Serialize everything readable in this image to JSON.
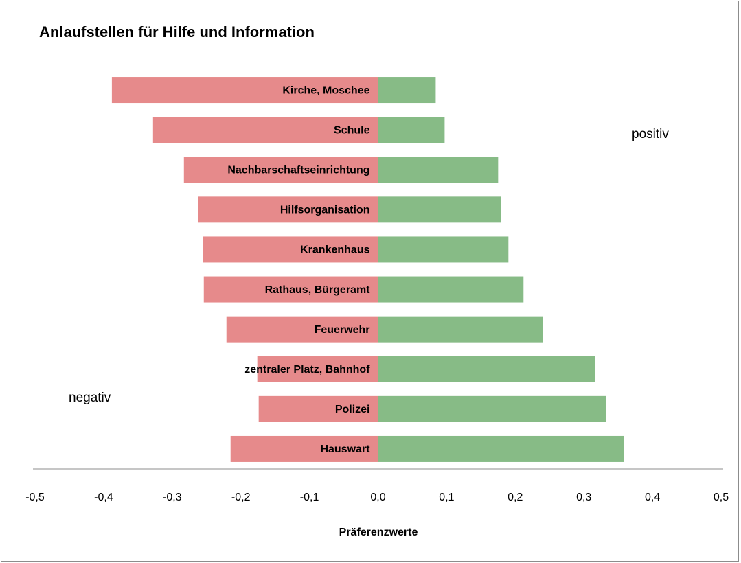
{
  "chart_data": {
    "type": "diverging-bar",
    "title": "Anlaufstellen für Hilfe und Information",
    "x_label": "Präferenzwerte",
    "annotations": [
      "negativ",
      "positiv"
    ],
    "categories": [
      "Kirche, Moschee",
      "Schule",
      "Nachbarschaftseinrichtung",
      "Hilfsorganisation",
      "Krankenhaus",
      "Rathaus, Bürgeramt",
      "Feuerwehr",
      "zentraler Platz, Bahnhof",
      "Polizei",
      "Hauswart"
    ],
    "series": [
      {
        "color": "#e68a8b",
        "values": [
          -0.388,
          -0.328,
          -0.283,
          -0.262,
          -0.255,
          -0.254,
          -0.221,
          -0.176,
          -0.174,
          -0.215
        ]
      },
      {
        "color": "#87bb86",
        "values": [
          0.084,
          0.097,
          0.175,
          0.179,
          0.19,
          0.212,
          0.24,
          0.316,
          0.332,
          0.358
        ]
      }
    ],
    "xlim": [
      -0.5,
      0.5
    ],
    "xticks": [
      {
        "value": -0.5,
        "label": "-0,5"
      },
      {
        "value": -0.4,
        "label": "-0,4"
      },
      {
        "value": -0.3,
        "label": "-0,3"
      },
      {
        "value": -0.2,
        "label": "-0,2"
      },
      {
        "value": -0.1,
        "label": "-0,1"
      },
      {
        "value": 0,
        "label": "0,0"
      },
      {
        "value": 0.1,
        "label": "0,1"
      },
      {
        "value": 0.2,
        "label": "0,2"
      },
      {
        "value": 0.3,
        "label": "0,3"
      },
      {
        "value": 0.4,
        "label": "0,4"
      },
      {
        "value": 0.5,
        "label": "0,5"
      }
    ]
  }
}
